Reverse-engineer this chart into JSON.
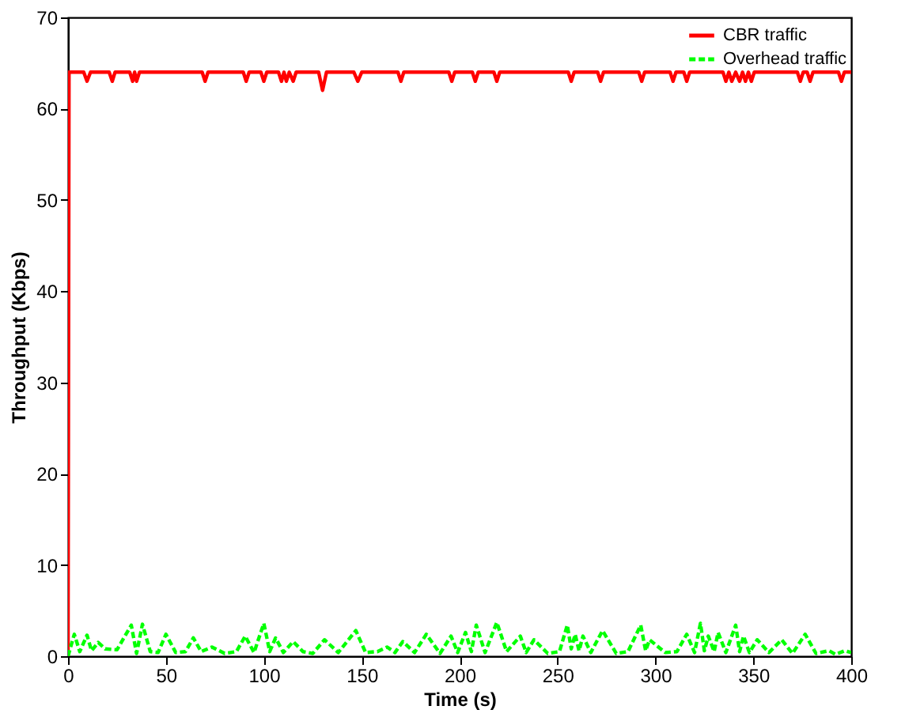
{
  "chart_data": {
    "type": "line",
    "xlabel": "Time (s)",
    "ylabel": "Throughput (Kbps)",
    "xlim": [
      0,
      400
    ],
    "ylim": [
      0,
      70
    ],
    "xticks": [
      0,
      50,
      100,
      150,
      200,
      250,
      300,
      350,
      400
    ],
    "yticks": [
      0,
      10,
      20,
      30,
      40,
      50,
      60,
      70
    ],
    "grid": false,
    "legend": "top right",
    "marker": "none",
    "series": [
      {
        "name": "CBR traffic",
        "color": "#ff0000",
        "line_style": "solid",
        "x": [
          0,
          0.5,
          8,
          9.7,
          11.5,
          21,
          22.6,
          24,
          31.5,
          33,
          34,
          35,
          36.5,
          68.5,
          70,
          71.5,
          89.5,
          91,
          92.5,
          98.5,
          100,
          101.5,
          107.5,
          109,
          110.3,
          111.5,
          113,
          115,
          116.5,
          128,
          130,
          132,
          146,
          148,
          150,
          168.5,
          170,
          171.5,
          194.5,
          196,
          197.5,
          206.5,
          208,
          209.5,
          217.5,
          219,
          220.5,
          255.5,
          257,
          258.5,
          270.5,
          272,
          273.5,
          291.5,
          293,
          294.5,
          307.5,
          309,
          310.5,
          314.5,
          316,
          317.5,
          334.5,
          336,
          337.5,
          339,
          341,
          343,
          344.5,
          346,
          347.5,
          349,
          350.5,
          372.5,
          374,
          375.5,
          377.5,
          379,
          380.5,
          393.5,
          395,
          396.5,
          400
        ],
        "values": [
          0,
          64,
          64,
          63,
          64,
          64,
          63,
          64,
          64,
          63,
          64,
          63,
          64,
          64,
          63,
          64,
          64,
          63,
          64,
          64,
          63,
          64,
          64,
          63,
          64,
          63,
          64,
          63,
          64,
          64,
          62,
          64,
          64,
          63,
          64,
          64,
          63,
          64,
          64,
          63,
          64,
          64,
          63,
          64,
          64,
          63,
          64,
          64,
          63,
          64,
          64,
          63,
          64,
          64,
          63,
          64,
          64,
          63,
          64,
          64,
          63,
          64,
          64,
          63,
          64,
          63,
          64,
          63,
          64,
          63,
          64,
          63,
          64,
          64,
          63,
          64,
          64,
          63,
          64,
          64,
          63,
          64,
          64
        ]
      },
      {
        "name": "Overhead traffic",
        "color": "#00ff00",
        "line_style": "dashed",
        "x": [
          0,
          3.2,
          6,
          9.7,
          12,
          15.4,
          19,
          25,
          32.3,
          35,
          38,
          42,
          46,
          50,
          55,
          60,
          64,
          68,
          73.5,
          80,
          86,
          90.5,
          95,
          100,
          103,
          106,
          110,
          115,
          120,
          125,
          131,
          138,
          147,
          152,
          158,
          163,
          167,
          171,
          177,
          183,
          190,
          195.6,
          199,
          203,
          206,
          208.5,
          213,
          219,
          224,
          231,
          234,
          238,
          245,
          251,
          255,
          257,
          259,
          261,
          263,
          267,
          273,
          280,
          286,
          292.5,
          295,
          297,
          305,
          311,
          316,
          320,
          323,
          325,
          327,
          330,
          332,
          336,
          341,
          343,
          345,
          348,
          352,
          358,
          364.5,
          370,
          376.5,
          382,
          388.7,
          392,
          396.8,
          400
        ],
        "values": [
          0,
          2.4,
          0.5,
          2.3,
          0.6,
          1.5,
          0.8,
          0.7,
          3.4,
          0.3,
          3.5,
          0.5,
          0.4,
          2.4,
          0.4,
          0.5,
          2,
          0.5,
          1,
          0.3,
          0.5,
          2.2,
          0.4,
          3.6,
          0.5,
          2,
          0.4,
          1.6,
          0.5,
          0.3,
          1.8,
          0.4,
          2.8,
          0.4,
          0.5,
          1,
          0.4,
          1.6,
          0.4,
          2.4,
          0.3,
          2.2,
          0.4,
          2.6,
          0.5,
          3.4,
          0.4,
          3.7,
          0.5,
          2.2,
          0.4,
          1.8,
          0.3,
          0.5,
          3.4,
          0.8,
          2.4,
          0.6,
          2.2,
          0.4,
          2.8,
          0.3,
          0.5,
          3.4,
          0.6,
          1.8,
          0.4,
          0.5,
          2.4,
          0.4,
          3.6,
          0.6,
          2.2,
          0.5,
          2.6,
          0.4,
          3.4,
          0.5,
          2.2,
          0.4,
          1.8,
          0.4,
          1.8,
          0.3,
          2.4,
          0.3,
          0.6,
          0.2,
          0.6,
          0.4
        ]
      }
    ]
  }
}
